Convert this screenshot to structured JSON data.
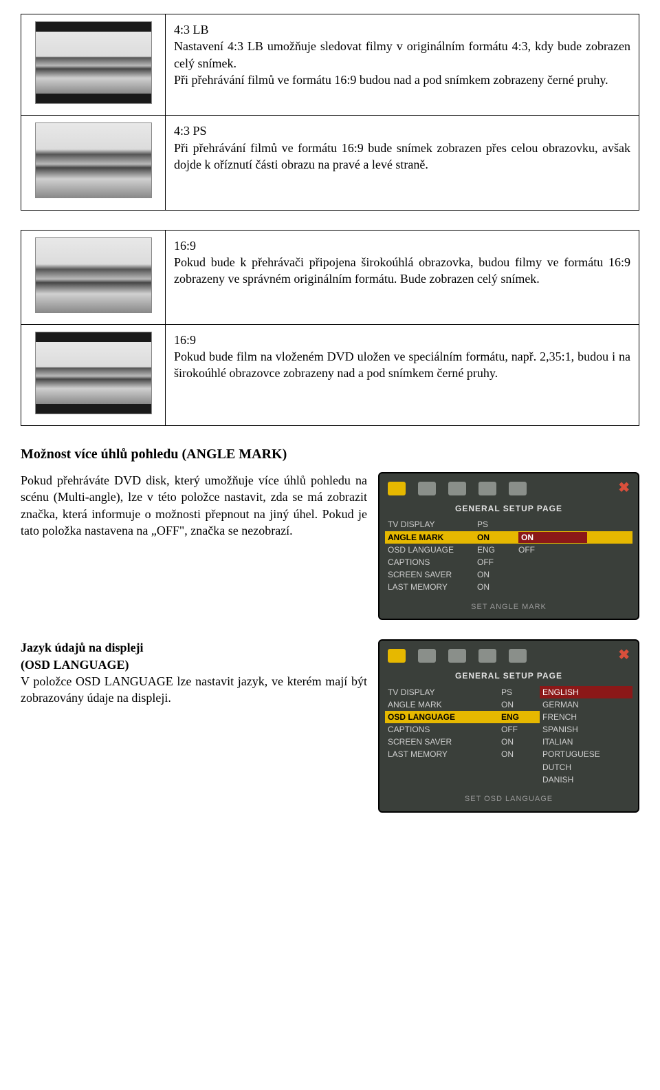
{
  "table1": {
    "rows": [
      {
        "thumb": "lb",
        "title": "4:3 LB",
        "body": "Nastavení 4:3 LB umožňuje sledovat filmy v originálním formátu 4:3, kdy bude zobrazen celý snímek.\nPři přehrávání filmů ve formátu 16:9 budou nad a pod snímkem zobrazeny černé pruhy."
      },
      {
        "thumb": "full",
        "title": "4:3 PS",
        "body": "Při přehrávání filmů ve formátu 16:9 bude snímek zobrazen přes celou obrazovku, avšak dojde k oříznutí části obrazu na pravé a levé straně."
      }
    ]
  },
  "table2": {
    "rows": [
      {
        "thumb": "full",
        "title": "16:9",
        "body": "Pokud bude k přehrávači připojena širokoúhlá obrazovka, budou filmy ve formátu 16:9 zobrazeny ve správném originálním formátu. Bude zobrazen celý snímek."
      },
      {
        "thumb": "lb",
        "title": "16:9",
        "body": "Pokud bude film na vloženém DVD uložen ve speciálním formátu, např. 2,35:1, budou i na širokoúhlé obrazovce zobrazeny nad a pod snímkem černé pruhy."
      }
    ]
  },
  "sectionA": {
    "heading": "Možnost více úhlů pohledu (ANGLE MARK)",
    "body": "Pokud přehráváte DVD disk, který umožňuje více úhlů pohledu na scénu (Multi-angle), lze v této položce nastavit, zda se má zobrazit značka, která informuje o možnosti přepnout na jiný úhel. Pokud je tato položka nastavena na „OFF\", značka se nezobrazí.",
    "italic": "(Multi-angle)"
  },
  "osd1": {
    "title": "GENERAL SETUP PAGE",
    "rows": [
      {
        "k": "TV DISPLAY",
        "v": "PS"
      },
      {
        "k": "ANGLE MARK",
        "v": "ON",
        "opt1": "ON",
        "opt2": "OFF",
        "hl": true
      },
      {
        "k": "OSD LANGUAGE",
        "v": "ENG"
      },
      {
        "k": "CAPTIONS",
        "v": "OFF"
      },
      {
        "k": "SCREEN SAVER",
        "v": "ON"
      },
      {
        "k": "LAST MEMORY",
        "v": "ON"
      }
    ],
    "footer": "SET ANGLE MARK"
  },
  "sectionB": {
    "heading": "Jazyk údajů na displeji",
    "sub": "(OSD LANGUAGE)",
    "body": "V položce OSD LANGUAGE lze nastavit jazyk, ve kterém mají být zobrazovány údaje na displeji."
  },
  "osd2": {
    "title": "GENERAL SETUP PAGE",
    "left": [
      {
        "k": "TV DISPLAY",
        "v": "PS"
      },
      {
        "k": "ANGLE MARK",
        "v": "ON"
      },
      {
        "k": "OSD LANGUAGE",
        "v": "ENG",
        "hl": true
      },
      {
        "k": "CAPTIONS",
        "v": "OFF"
      },
      {
        "k": "SCREEN SAVER",
        "v": "ON"
      },
      {
        "k": "LAST MEMORY",
        "v": "ON"
      }
    ],
    "options": [
      "ENGLISH",
      "GERMAN",
      "FRENCH",
      "SPANISH",
      "ITALIAN",
      "PORTUGUESE",
      "DUTCH",
      "DANISH"
    ],
    "selected": "ENGLISH",
    "footer": "SET OSD LANGUAGE"
  }
}
